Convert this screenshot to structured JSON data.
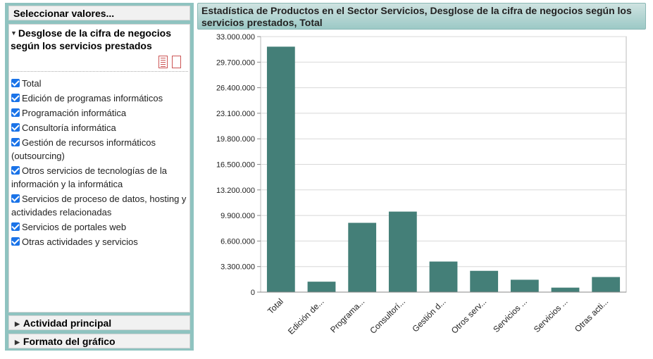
{
  "panel": {
    "header": "Seleccionar valores...",
    "section_title": "Desglose de la cifra de negocios según los servicios prestados",
    "items": [
      "Total",
      "Edición de programas informáticos",
      "Programación informática",
      "Consultoría informática",
      "Gestión de recursos informáticos (outsourcing)",
      "Otros servicios de tecnologías de la información y la informática",
      "Servicios de proceso de datos, hosting y actividades relacionadas",
      "Servicios de portales web",
      "Otras actividades y servicios"
    ],
    "actividad": "Actividad principal",
    "formato": "Formato del gráfico"
  },
  "icons": {
    "list": "list-icon",
    "blank": "blank-page-icon",
    "expand": "triangle-down-icon",
    "collapsed": "triangle-right-icon"
  },
  "chart_data": {
    "type": "bar",
    "title": "Estadística de Productos en el Sector Servicios, Desglose de la cifra de negocios según los servicios prestados, Total",
    "categories": [
      "Total",
      "Edición de...",
      "Programa...",
      "Consultorí...",
      "Gestión d...",
      "Otros serv...",
      "Servicios ...",
      "Servicios ...",
      "Otras acti..."
    ],
    "values": [
      31700000,
      1350000,
      8950000,
      10400000,
      3950000,
      2750000,
      1600000,
      580000,
      1950000
    ],
    "ylim": [
      0,
      33000000
    ],
    "yticks": [
      "0",
      "3.300.000",
      "6.600.000",
      "9.900.000",
      "13.200.000",
      "16.500.000",
      "19.800.000",
      "23.100.000",
      "26.400.000",
      "29.700.000",
      "33.000.000"
    ],
    "bar_color": "#447f78",
    "grid": true
  }
}
